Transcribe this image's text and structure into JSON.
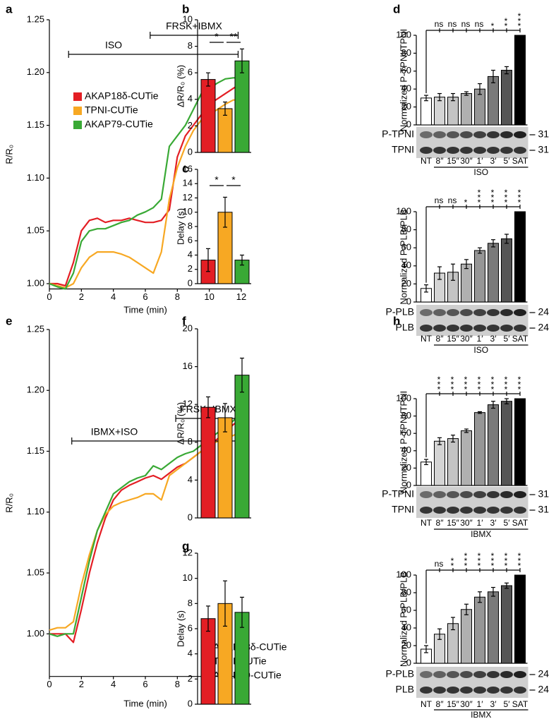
{
  "chart_data": [
    {
      "type": "line",
      "panel": "a",
      "x_label": "Time (min)",
      "y_label": "R/R₀",
      "x": [
        0,
        0.5,
        1,
        1.5,
        2,
        2.5,
        3,
        3.5,
        4,
        4.5,
        5,
        5.5,
        6,
        6.5,
        7,
        7.5,
        8,
        8.5,
        9,
        9.5,
        10,
        10.5,
        11,
        11.5,
        12
      ],
      "xlim": [
        0,
        12
      ],
      "xticks": [
        0,
        2,
        4,
        6,
        8,
        10,
        12
      ],
      "ylim": [
        0.995,
        1.25
      ],
      "yticks": [
        {
          "value": 1,
          "label": "1.00"
        },
        1.05,
        {
          "value": 1.1,
          "label": "1.10"
        },
        1.15,
        {
          "value": 1.2,
          "label": "1.20"
        },
        1.25
      ],
      "legend": "upper left",
      "series": [
        {
          "name": "AKAP18δ-CUTie",
          "color": "#e31e24",
          "values": [
            1.0,
            1.0,
            0.998,
            1.02,
            1.05,
            1.06,
            1.062,
            1.058,
            1.06,
            1.06,
            1.062,
            1.06,
            1.058,
            1.058,
            1.06,
            1.07,
            1.12,
            1.14,
            1.15,
            1.16,
            1.17,
            1.175,
            1.18,
            1.185,
            1.19
          ]
        },
        {
          "name": "TPNI-CUTie",
          "color": "#f7a823",
          "values": [
            1.0,
            0.998,
            0.996,
            1.0,
            1.015,
            1.025,
            1.03,
            1.03,
            1.03,
            1.028,
            1.025,
            1.02,
            1.015,
            1.01,
            1.03,
            1.08,
            1.11,
            1.13,
            1.145,
            1.155,
            1.16,
            1.165,
            1.17,
            1.174,
            1.174
          ]
        },
        {
          "name": "AKAP79-CUTie",
          "color": "#39a935",
          "values": [
            1.0,
            0.997,
            0.995,
            1.01,
            1.04,
            1.05,
            1.052,
            1.052,
            1.055,
            1.058,
            1.06,
            1.065,
            1.068,
            1.072,
            1.08,
            1.13,
            1.14,
            1.15,
            1.165,
            1.18,
            1.185,
            1.19,
            1.194,
            1.195,
            1.195
          ]
        }
      ],
      "annotations": [
        {
          "text": "ISO",
          "start": 1.2,
          "end": 11.8
        },
        {
          "text": "FRSK+IBMX",
          "start": 6.3,
          "end": 11.8
        }
      ]
    },
    {
      "type": "bar",
      "panel": "b",
      "y_label": "ΔR/R₀ (%)",
      "values": [
        5.5,
        3.3,
        6.9
      ],
      "errors": [
        0.5,
        0.5,
        0.9
      ],
      "colors": [
        "#e31e24",
        "#f7a823",
        "#39a935"
      ],
      "ylim": [
        0,
        10
      ],
      "yticks": [
        0,
        2,
        4,
        6,
        8,
        10
      ],
      "comparisons": [
        "*",
        "**"
      ]
    },
    {
      "type": "bar",
      "panel": "c",
      "y_label": "Delay (s)",
      "values": [
        3.3,
        10.0,
        3.3
      ],
      "errors": [
        1.6,
        2.1,
        0.7
      ],
      "colors": [
        "#e31e24",
        "#f7a823",
        "#39a935"
      ],
      "ylim": [
        0,
        16
      ],
      "yticks": [
        0,
        2,
        4,
        6,
        8,
        10,
        12,
        14,
        16
      ],
      "comparisons": [
        "*",
        "*"
      ]
    },
    {
      "type": "bar",
      "panel": "d",
      "y_label": "Normalized P-TPNI/TPNI",
      "categories": [
        "NT",
        "8″",
        "15″",
        "30″",
        "1′",
        "3′",
        "5′",
        "SAT"
      ],
      "values": [
        30,
        31,
        31,
        35,
        40,
        54,
        61,
        100
      ],
      "errors": [
        3,
        4,
        4,
        2,
        6,
        7,
        4,
        null
      ],
      "colors": [
        "#ffffff",
        "#d4d4d4",
        "#c4c4c4",
        "#b0b0b0",
        "#969696",
        "#7a7a7a",
        "#555555",
        "#000000"
      ],
      "ylim": [
        0,
        100
      ],
      "yticks": [
        0,
        20,
        40,
        60,
        80,
        100
      ],
      "significance": [
        null,
        "ns",
        "ns",
        "ns",
        "ns",
        "*",
        "**",
        "***"
      ],
      "blots": [
        {
          "label": "P-TPNI",
          "size": 31
        },
        {
          "label": "TPNI",
          "size": 31
        }
      ],
      "treatment": "ISO"
    },
    {
      "type": "bar",
      "y_label": "Normalized P-PLB/PLB",
      "categories": [
        "NT",
        "8″",
        "15″",
        "30″",
        "1′",
        "3′",
        "5′",
        "SAT"
      ],
      "values": [
        15,
        32,
        33,
        42,
        57,
        65,
        70,
        100
      ],
      "errors": [
        4,
        7,
        9,
        5,
        3,
        4,
        5,
        null
      ],
      "colors": [
        "#ffffff",
        "#d4d4d4",
        "#c4c4c4",
        "#b0b0b0",
        "#969696",
        "#7a7a7a",
        "#555555",
        "#000000"
      ],
      "ylim": [
        0,
        100
      ],
      "yticks": [
        0,
        20,
        40,
        60,
        80,
        100
      ],
      "significance": [
        null,
        "ns",
        "ns",
        "*",
        "***",
        "***",
        "***",
        "***"
      ],
      "blots": [
        {
          "label": "P-PLB",
          "size": 24
        },
        {
          "label": "PLB",
          "size": 24
        }
      ],
      "treatment": "ISO"
    },
    {
      "type": "line",
      "panel": "e",
      "x_label": "Time (min)",
      "y_label": "R/R₀",
      "x": [
        0,
        0.5,
        1,
        1.5,
        2,
        2.5,
        3,
        3.5,
        4,
        4.5,
        5,
        5.5,
        6,
        6.5,
        7,
        7.5,
        8,
        8.5,
        9,
        9.5,
        10,
        10.5,
        11,
        11.5,
        12
      ],
      "xlim": [
        0,
        12
      ],
      "xticks": [
        0,
        2,
        4,
        6,
        8,
        10,
        12
      ],
      "ylim": [
        0.965,
        1.25
      ],
      "yticks": [
        {
          "value": 1,
          "label": "1.00"
        },
        1.05,
        {
          "value": 1.1,
          "label": "1.10"
        },
        1.15,
        {
          "value": 1.2,
          "label": "1.20"
        },
        1.25
      ],
      "legend": "lower right",
      "series": [
        {
          "name": "AKAP18δ-CUTie",
          "color": "#e31e24",
          "values": [
            1.0,
            1.0,
            1.0,
            0.993,
            1.02,
            1.05,
            1.075,
            1.095,
            1.11,
            1.118,
            1.122,
            1.125,
            1.128,
            1.13,
            1.127,
            1.132,
            1.137,
            1.14,
            1.145,
            1.15,
            1.155,
            1.16,
            1.165,
            1.172,
            1.176
          ]
        },
        {
          "name": "TPNI-CUTie",
          "color": "#f7a823",
          "values": [
            1.003,
            1.005,
            1.005,
            1.01,
            1.04,
            1.065,
            1.085,
            1.098,
            1.105,
            1.108,
            1.11,
            1.112,
            1.115,
            1.115,
            1.11,
            1.13,
            1.135,
            1.14,
            1.145,
            1.15,
            1.155,
            1.158,
            1.16,
            1.163,
            1.166
          ]
        },
        {
          "name": "AKAP79-CUTie",
          "color": "#39a935",
          "values": [
            1.0,
            0.998,
            1.0,
            1.0,
            1.03,
            1.06,
            1.085,
            1.1,
            1.115,
            1.12,
            1.125,
            1.128,
            1.13,
            1.138,
            1.135,
            1.14,
            1.145,
            1.148,
            1.15,
            1.155,
            1.16,
            1.165,
            1.17,
            1.175,
            1.182
          ]
        }
      ],
      "annotations": [
        {
          "text": "IBMX+ISO",
          "start": 1.4,
          "end": 11.95
        },
        {
          "text": "FRSK+IBMX",
          "start": 7.9,
          "end": 11.95
        }
      ]
    },
    {
      "type": "bar",
      "panel": "f",
      "y_label": "ΔR/R₀ (%)",
      "values": [
        11.7,
        10.6,
        15.1
      ],
      "errors": [
        1.1,
        1.5,
        1.8
      ],
      "colors": [
        "#e31e24",
        "#f7a823",
        "#39a935"
      ],
      "ylim": [
        0,
        20
      ],
      "yticks": [
        0,
        4,
        8,
        12,
        16,
        20
      ]
    },
    {
      "type": "bar",
      "panel": "g",
      "y_label": "Delay (s)",
      "values": [
        6.8,
        8.0,
        7.3
      ],
      "errors": [
        1.0,
        1.8,
        1.2
      ],
      "colors": [
        "#e31e24",
        "#f7a823",
        "#39a935"
      ],
      "ylim": [
        0,
        12
      ],
      "yticks": [
        0,
        2,
        4,
        6,
        8,
        10,
        12
      ]
    },
    {
      "type": "bar",
      "panel": "h",
      "y_label": "Normalized P-TPNI/TPNI",
      "categories": [
        "NT",
        "8″",
        "15″",
        "30″",
        "1′",
        "3′",
        "5′",
        "SAT"
      ],
      "values": [
        27,
        51,
        54,
        63,
        84,
        93,
        97,
        100
      ],
      "errors": [
        3,
        4,
        4,
        2,
        1,
        4,
        3,
        null
      ],
      "colors": [
        "#ffffff",
        "#d4d4d4",
        "#c4c4c4",
        "#b0b0b0",
        "#969696",
        "#7a7a7a",
        "#555555",
        "#000000"
      ],
      "ylim": [
        0,
        100
      ],
      "yticks": [
        0,
        20,
        40,
        60,
        80,
        100
      ],
      "significance": [
        null,
        "***",
        "***",
        "***",
        "***",
        "***",
        "***",
        "***"
      ],
      "blots": [
        {
          "label": "P-TPNI",
          "size": 31
        },
        {
          "label": "TPNI",
          "size": 31
        }
      ],
      "treatment": "IBMX"
    },
    {
      "type": "bar",
      "y_label": "Normalized P-PLB/PLB",
      "categories": [
        "NT",
        "8″",
        "15″",
        "30″",
        "1′",
        "3′",
        "5′",
        "SAT"
      ],
      "values": [
        16,
        33,
        45,
        61,
        75,
        81,
        88,
        100
      ],
      "errors": [
        4,
        6,
        7,
        6,
        6,
        5,
        3,
        null
      ],
      "colors": [
        "#ffffff",
        "#d4d4d4",
        "#c4c4c4",
        "#b0b0b0",
        "#969696",
        "#7a7a7a",
        "#555555",
        "#000000"
      ],
      "ylim": [
        0,
        100
      ],
      "yticks": [
        0,
        20,
        40,
        60,
        80,
        100
      ],
      "significance": [
        null,
        "ns",
        "**",
        "***",
        "***",
        "***",
        "***",
        "***"
      ],
      "blots": [
        {
          "label": "P-PLB",
          "size": 24
        },
        {
          "label": "PLB",
          "size": 24
        }
      ],
      "treatment": "IBMX"
    }
  ]
}
